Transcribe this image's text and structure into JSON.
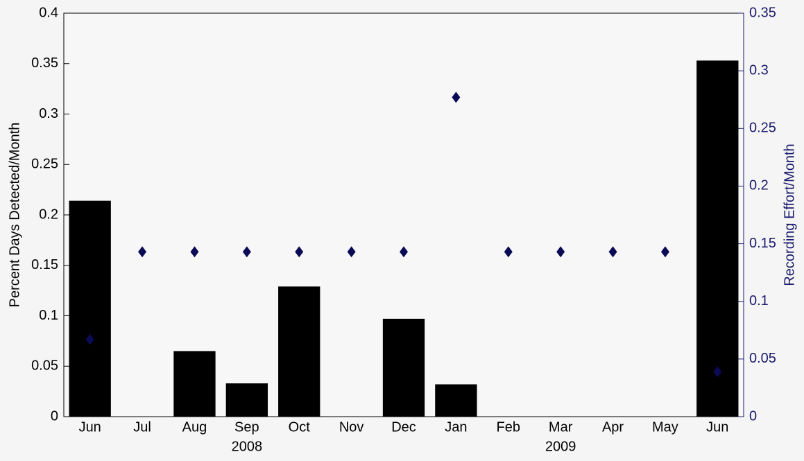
{
  "chart_data": {
    "type": "bar",
    "ylabel": "Percent Days Detected/Month",
    "y2label": "Recording Effort/Month",
    "categories": [
      "Jun",
      "Jul",
      "Aug",
      "Sep",
      "Oct",
      "Nov",
      "Dec",
      "Jan",
      "Feb",
      "Mar",
      "Apr",
      "May",
      "Jun"
    ],
    "x_group_labels": [
      null,
      null,
      null,
      "2008",
      null,
      null,
      null,
      null,
      null,
      "2009",
      null,
      null,
      null
    ],
    "series": [
      {
        "type": "bar",
        "color": "#000000",
        "values": [
          0.214,
          0,
          0.065,
          0.033,
          0.129,
          0,
          0.097,
          0.032,
          0,
          0,
          0,
          0,
          0.353
        ]
      },
      {
        "type": "scatter",
        "marker": "diamond",
        "axis": "y2",
        "color": "#0a0a55",
        "values": [
          0.067,
          0.143,
          0.143,
          0.143,
          0.143,
          0.143,
          0.143,
          0.277,
          0.143,
          0.143,
          0.143,
          0.143,
          0.039
        ]
      }
    ],
    "ylim": [
      0,
      0.4
    ],
    "yticks": [
      0,
      0.05,
      0.1,
      0.15,
      0.2,
      0.25,
      0.3,
      0.35,
      0.4
    ],
    "y2lim": [
      0,
      0.35
    ],
    "y2ticks": [
      0,
      0.05,
      0.1,
      0.15,
      0.2,
      0.25,
      0.3,
      0.35
    ],
    "y2color": "#1a1a6e",
    "grid": false
  }
}
